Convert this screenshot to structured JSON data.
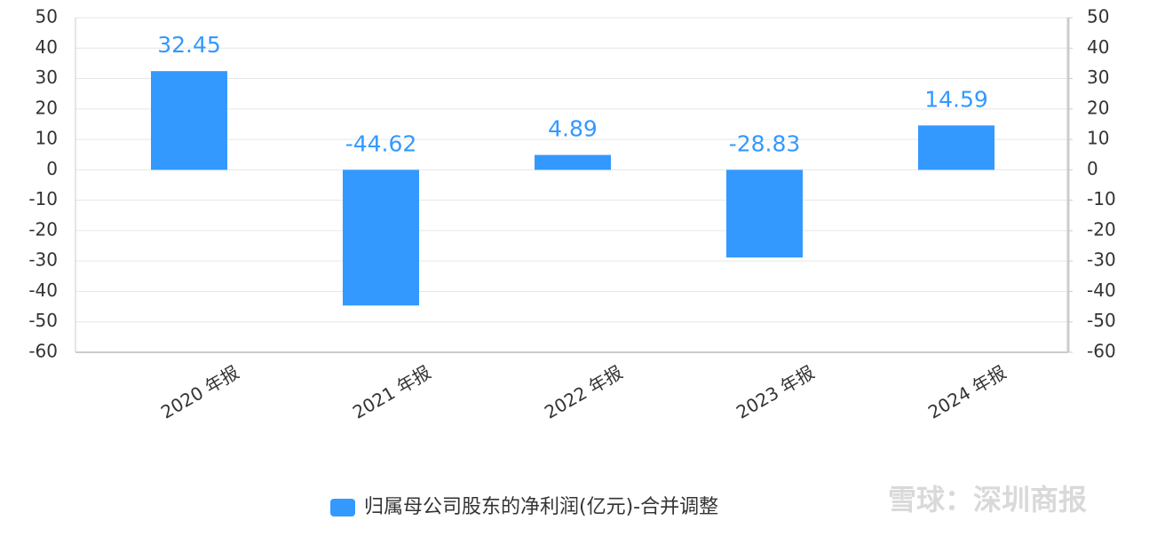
{
  "chart_data": {
    "type": "bar",
    "categories": [
      "2020 年报",
      "2021 年报",
      "2022 年报",
      "2023 年报",
      "2024 年报"
    ],
    "series": [
      {
        "name": "归属母公司股东的净利润(亿元)-合并调整",
        "color": "#3399ff",
        "values": [
          32.45,
          -44.62,
          4.89,
          -28.83,
          14.59
        ]
      }
    ],
    "ylim": [
      -60,
      50
    ],
    "yticks": [
      -60,
      -50,
      -40,
      -30,
      -20,
      -10,
      0,
      10,
      20,
      30,
      40,
      50
    ],
    "y2lim": [
      -60,
      50
    ],
    "y2ticks": [
      -60,
      -50,
      -40,
      -30,
      -20,
      -10,
      0,
      10,
      20,
      30,
      40,
      50
    ],
    "grid": true,
    "legend": "bottom",
    "watermark": "雪球：深圳商报"
  }
}
